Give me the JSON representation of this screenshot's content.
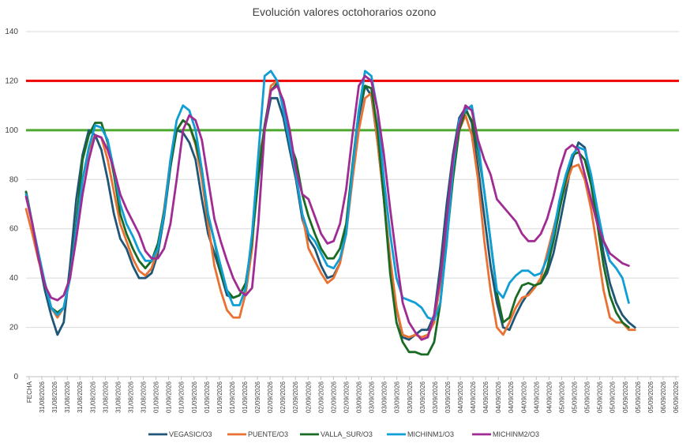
{
  "chart_data": {
    "type": "line",
    "title": "Evolución valores octohorarios ozono",
    "ylim": [
      0,
      140
    ],
    "yticks": [
      0,
      20,
      40,
      60,
      80,
      100,
      120,
      140
    ],
    "grid": true,
    "legend": "bottom",
    "xticks": [
      "FECHA",
      "31/08/2026",
      "31/08/2026",
      "31/08/2026",
      "31/08/2026",
      "31/08/2026",
      "31/08/2026",
      "31/08/2026",
      "31/08/2026",
      "31/08/2026",
      "01/09/2026",
      "01/09/2026",
      "01/09/2026",
      "01/09/2026",
      "01/09/2026",
      "01/09/2026",
      "01/09/2026",
      "01/09/2026",
      "02/09/2026",
      "02/09/2026",
      "02/09/2026",
      "02/09/2026",
      "02/09/2026",
      "02/09/2026",
      "02/09/2026",
      "02/09/2026",
      "03/09/2026",
      "03/09/2026",
      "03/09/2026",
      "03/09/2026",
      "03/09/2026",
      "03/09/2026",
      "03/09/2026",
      "03/09/2026",
      "04/09/2026",
      "04/09/2026",
      "04/09/2026",
      "04/09/2026",
      "04/09/2026",
      "04/09/2026",
      "04/09/2026",
      "04/09/2026",
      "05/09/2026",
      "05/09/2026",
      "05/09/2026",
      "05/09/2026",
      "05/09/2026",
      "05/09/2026",
      "05/09/2026",
      "05/09/2026",
      "06/09/2026",
      "06/09/2026"
    ],
    "x": [
      0,
      4,
      8,
      12,
      16,
      20,
      24,
      28,
      32,
      36,
      40,
      44,
      48,
      52,
      56,
      60,
      64,
      68,
      72,
      76,
      80,
      84,
      88,
      92,
      96,
      100,
      104,
      108,
      112,
      116,
      120,
      124,
      128,
      132,
      136,
      140,
      144,
      148,
      152,
      156,
      160,
      164,
      168,
      172,
      176,
      180,
      184,
      188,
      192,
      196,
      200,
      204,
      208,
      212,
      216,
      220,
      224,
      228,
      232,
      236,
      240,
      244,
      248,
      252,
      256,
      260,
      264,
      268,
      272,
      276,
      280,
      284,
      288,
      292,
      296,
      300,
      304,
      308,
      312,
      316,
      320,
      324,
      328,
      332,
      336,
      340,
      344,
      348,
      352,
      356,
      360,
      364,
      368,
      372,
      376,
      380,
      384,
      388,
      392,
      396,
      400,
      404,
      408,
      412,
      416
    ],
    "reference_lines": [
      {
        "value": 120,
        "color": "#ee0000"
      },
      {
        "value": 100,
        "color": "#4ea72e"
      }
    ],
    "series": [
      {
        "name": "VEGASIC/O3",
        "color": "#1f5677",
        "values": [
          75,
          62,
          48,
          35,
          25,
          17,
          22,
          45,
          72,
          90,
          100,
          98,
          92,
          80,
          66,
          56,
          52,
          45,
          40,
          40,
          42,
          50,
          65,
          85,
          100,
          99,
          95,
          88,
          72,
          58,
          50,
          42,
          33,
          32,
          33,
          38,
          55,
          80,
          100,
          113,
          113,
          105,
          92,
          80,
          64,
          56,
          52,
          45,
          40,
          41,
          46,
          60,
          85,
          105,
          118,
          114,
          95,
          72,
          45,
          28,
          16,
          15,
          17,
          19,
          19,
          25,
          45,
          70,
          90,
          105,
          109,
          103,
          85,
          65,
          45,
          30,
          20,
          19,
          25,
          30,
          34,
          37,
          38,
          42,
          50,
          62,
          75,
          88,
          95,
          93,
          80,
          65,
          50,
          38,
          30,
          25,
          22,
          20,
          null,
          null,
          null,
          null,
          null,
          null,
          null
        ]
      },
      {
        "name": "PUENTE/O3",
        "color": "#e97132",
        "values": [
          68,
          58,
          47,
          38,
          28,
          24,
          28,
          40,
          60,
          80,
          92,
          98,
          97,
          88,
          75,
          62,
          55,
          48,
          43,
          41,
          44,
          52,
          68,
          88,
          100,
          104,
          102,
          94,
          80,
          62,
          45,
          35,
          27,
          24,
          24,
          34,
          52,
          88,
          100,
          118,
          120,
          110,
          97,
          82,
          66,
          52,
          47,
          42,
          38,
          40,
          46,
          58,
          80,
          100,
          113,
          115,
          95,
          72,
          48,
          28,
          17,
          16,
          17,
          16,
          17,
          22,
          38,
          62,
          84,
          100,
          106,
          98,
          80,
          55,
          35,
          20,
          17,
          22,
          28,
          32,
          33,
          36,
          40,
          50,
          60,
          70,
          78,
          85,
          86,
          80,
          68,
          52,
          35,
          24,
          22,
          22,
          19,
          19,
          null,
          null,
          null,
          null,
          null,
          null,
          null
        ]
      },
      {
        "name": "VALLA_SUR/O3",
        "color": "#196b24",
        "values": [
          75,
          62,
          48,
          38,
          28,
          26,
          28,
          40,
          62,
          88,
          98,
          103,
          103,
          95,
          82,
          66,
          58,
          52,
          47,
          44,
          47,
          54,
          67,
          86,
          100,
          104,
          102,
          95,
          84,
          65,
          55,
          42,
          35,
          32,
          33,
          38,
          55,
          82,
          102,
          116,
          119,
          110,
          95,
          88,
          74,
          65,
          58,
          52,
          48,
          48,
          52,
          62,
          86,
          108,
          118,
          117,
          100,
          72,
          42,
          22,
          14,
          10,
          10,
          9,
          9,
          14,
          30,
          55,
          80,
          100,
          108,
          104,
          92,
          75,
          55,
          34,
          22,
          24,
          32,
          37,
          38,
          37,
          38,
          44,
          55,
          68,
          80,
          90,
          91,
          88,
          78,
          62,
          45,
          33,
          26,
          22,
          20,
          null,
          null,
          null,
          null,
          null,
          null,
          null,
          null
        ]
      },
      {
        "name": "MICHINM1/O3",
        "color": "#0f9ed5",
        "values": [
          74,
          62,
          50,
          38,
          28,
          25,
          28,
          40,
          60,
          80,
          93,
          102,
          101,
          96,
          84,
          70,
          62,
          57,
          51,
          47,
          47,
          52,
          66,
          88,
          104,
          110,
          108,
          100,
          84,
          66,
          55,
          45,
          35,
          29,
          29,
          36,
          58,
          90,
          122,
          124,
          120,
          108,
          95,
          82,
          66,
          58,
          55,
          50,
          45,
          44,
          48,
          58,
          84,
          108,
          124,
          122,
          108,
          80,
          58,
          40,
          32,
          31,
          30,
          28,
          24,
          23,
          30,
          54,
          84,
          104,
          108,
          110,
          95,
          75,
          55,
          35,
          32,
          38,
          41,
          43,
          43,
          41,
          42,
          48,
          58,
          72,
          82,
          90,
          93,
          92,
          82,
          68,
          55,
          47,
          44,
          40,
          30,
          null,
          null,
          null,
          null,
          null,
          null,
          null,
          null
        ]
      },
      {
        "name": "MICHINM2/O3",
        "color": "#a02b93",
        "values": [
          73,
          62,
          48,
          37,
          32,
          31,
          33,
          40,
          56,
          74,
          88,
          98,
          97,
          92,
          84,
          74,
          68,
          63,
          58,
          51,
          48,
          48,
          52,
          62,
          80,
          100,
          106,
          104,
          96,
          80,
          64,
          55,
          47,
          40,
          35,
          33,
          36,
          62,
          100,
          116,
          118,
          112,
          100,
          84,
          74,
          72,
          65,
          58,
          54,
          55,
          62,
          76,
          98,
          118,
          122,
          120,
          108,
          90,
          68,
          48,
          30,
          22,
          18,
          15,
          16,
          25,
          40,
          64,
          88,
          102,
          110,
          108,
          96,
          88,
          82,
          72,
          69,
          66,
          63,
          58,
          55,
          55,
          58,
          64,
          73,
          84,
          92,
          94,
          92,
          82,
          72,
          62,
          55,
          50,
          48,
          46,
          45,
          null,
          null,
          null,
          null,
          null,
          null,
          null,
          null
        ]
      }
    ]
  }
}
